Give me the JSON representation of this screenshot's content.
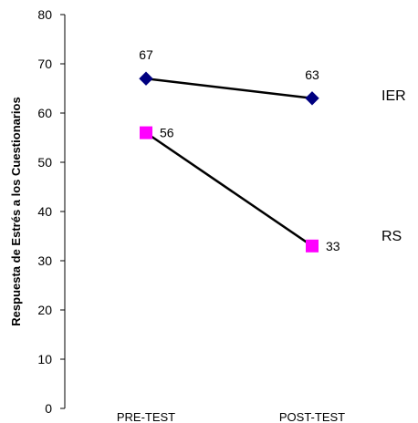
{
  "chart_data": {
    "type": "line",
    "title": "",
    "xlabel": "",
    "ylabel": "Respuesta de Estrés a los Cuestionarios",
    "ylim": [
      0,
      80
    ],
    "yticks": [
      0,
      10,
      20,
      30,
      40,
      50,
      60,
      70,
      80
    ],
    "categories": [
      "PRE-TEST",
      "POST-TEST"
    ],
    "grid": false,
    "legend": "labels at right end of lines",
    "series": [
      {
        "name": "IER",
        "values": [
          67,
          63
        ],
        "color": "#000080",
        "marker": "diamond"
      },
      {
        "name": "RS",
        "values": [
          56,
          33
        ],
        "color": "#FF00FF",
        "marker": "square"
      }
    ]
  }
}
